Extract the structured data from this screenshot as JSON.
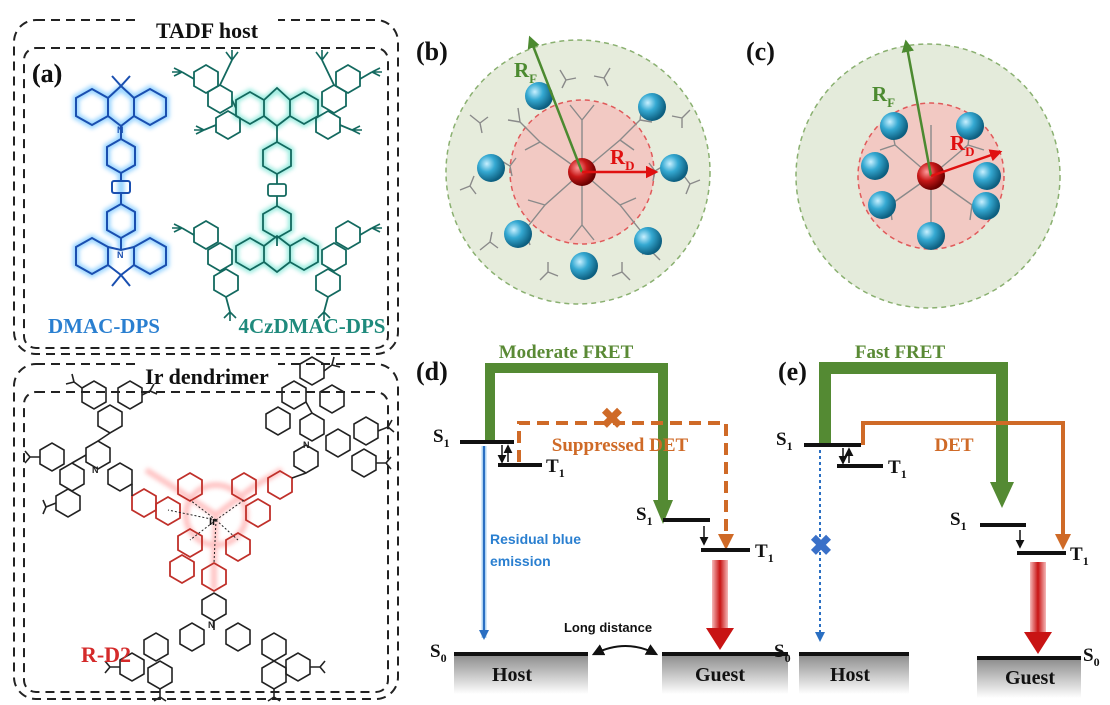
{
  "panels": {
    "a": "(a)",
    "b": "(b)",
    "c": "(c)",
    "d": "(d)",
    "e": "(e)"
  },
  "tadf_box": {
    "title": "TADF host",
    "mol1": "DMAC-DPS",
    "mol2": "4CzDMAC-DPS"
  },
  "ir_box": {
    "title": "Ir dendrimer",
    "mol": "R-D2",
    "metal": "Ir"
  },
  "spheres": {
    "rf": "R",
    "rf_sub": "F",
    "rd": "R",
    "rd_sub": "D"
  },
  "diagram_d": {
    "fret": "Moderate FRET",
    "det": "Suppressed DET",
    "host_s1": "S",
    "host_s1_sub": "1",
    "host_t1": "T",
    "host_t1_sub": "1",
    "guest_s1": "S",
    "guest_s1_sub": "1",
    "guest_t1": "T",
    "guest_t1_sub": "1",
    "s0": "S",
    "s0_sub": "0",
    "residual_1": "Residual blue",
    "residual_2": "emission",
    "long_distance": "Long distance",
    "host": "Host",
    "guest": "Guest"
  },
  "diagram_e": {
    "fret": "Fast FRET",
    "det": "DET",
    "host_s1": "S",
    "host_s1_sub": "1",
    "host_t1": "T",
    "host_t1_sub": "1",
    "guest_s1": "S",
    "guest_s1_sub": "1",
    "guest_t1": "T",
    "guest_t1_sub": "1",
    "s0_left": "S",
    "s0_left_sub": "0",
    "s0_right": "S",
    "s0_right_sub": "0",
    "host": "Host",
    "guest": "Guest"
  },
  "colors": {
    "blue": "#2a6fc2",
    "teal": "#1f8a7c",
    "green": "#5a8a35",
    "orange": "#cf6a27",
    "red": "#d42a2a",
    "cyan": "#2fa3c6"
  }
}
